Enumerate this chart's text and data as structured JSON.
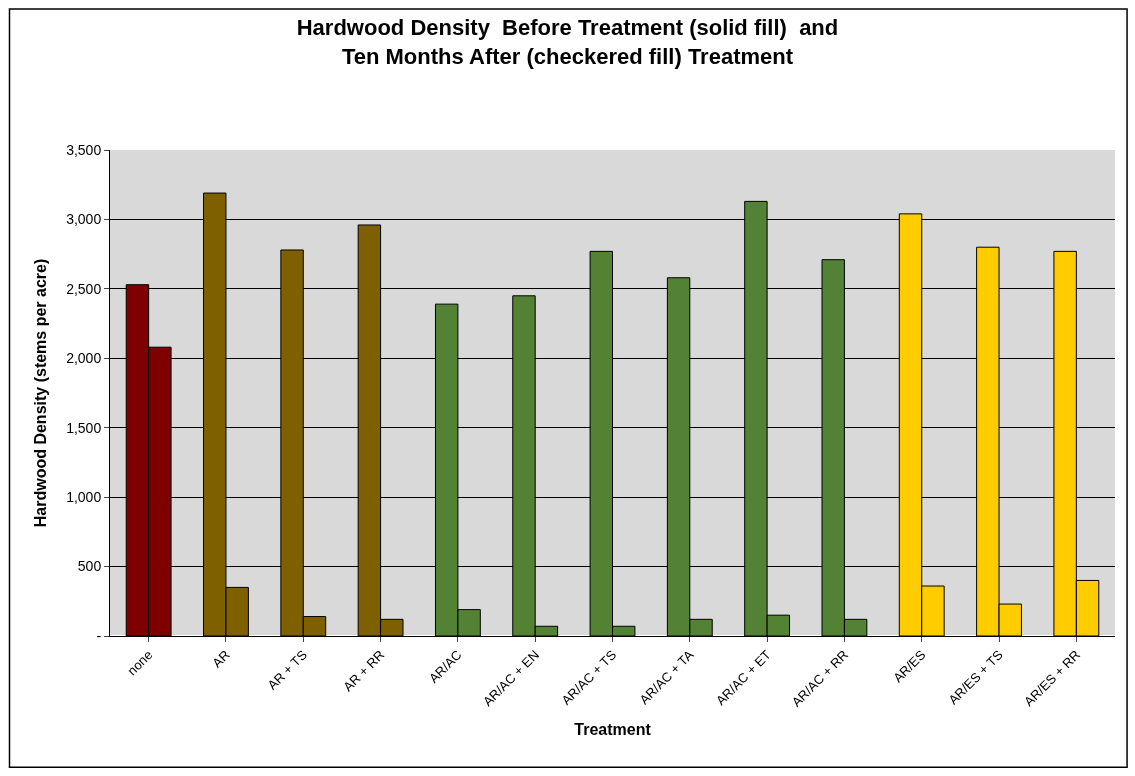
{
  "chart_data": {
    "type": "bar",
    "title": "Hardwood Density  Before Treatment (solid fill)  and\nTen Months After (checkered fill) Treatment",
    "xlabel": "Treatment",
    "ylabel": "Hardwood Density (stems per acre)",
    "categories": [
      "none",
      "AR",
      "AR + TS",
      "AR + RR",
      "AR/AC",
      "AR/AC + EN",
      "AR/AC + TS",
      "AR/AC + TA",
      "AR/AC + ET",
      "AR/AC + RR",
      "AR/ES",
      "AR/ES + TS",
      "AR/ES + RR"
    ],
    "series": [
      {
        "colors": [
          "#7f0000",
          "#7f6000",
          "#7f6000",
          "#7f6000",
          "#548235",
          "#548235",
          "#548235",
          "#548235",
          "#548235",
          "#548235",
          "#ffcc00",
          "#ffcc00",
          "#ffcc00"
        ],
        "values": [
          2530,
          3190,
          2780,
          2960,
          2390,
          2450,
          2770,
          2580,
          3130,
          2710,
          3040,
          2800,
          2770
        ]
      },
      {
        "colors": [
          "#7f0000",
          "#7f6000",
          "#7f6000",
          "#7f6000",
          "#548235",
          "#548235",
          "#548235",
          "#548235",
          "#548235",
          "#548235",
          "#ffcc00",
          "#ffcc00",
          "#ffcc00"
        ],
        "values": [
          2080,
          350,
          140,
          120,
          190,
          70,
          70,
          120,
          150,
          120,
          360,
          230,
          400
        ]
      }
    ],
    "ylim": [
      0,
      3500
    ],
    "yticks": [
      {
        "value": 0,
        "label": "-"
      },
      {
        "value": 500,
        "label": "500"
      },
      {
        "value": 1000,
        "label": "1,000"
      },
      {
        "value": 1500,
        "label": "1,500"
      },
      {
        "value": 2000,
        "label": "2,000"
      },
      {
        "value": 2500,
        "label": "2,500"
      },
      {
        "value": 3000,
        "label": "3,000"
      },
      {
        "value": 3500,
        "label": "3,500"
      }
    ],
    "grid": "y"
  }
}
